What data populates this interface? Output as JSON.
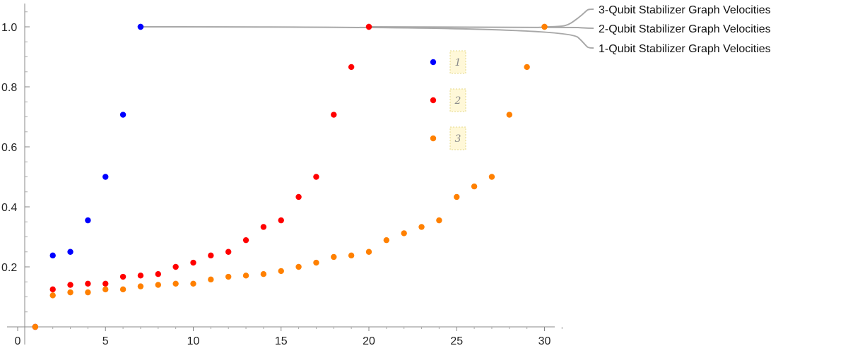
{
  "chart_data": {
    "type": "scatter",
    "title": "",
    "xlabel": "",
    "ylabel": "",
    "xlim": [
      0,
      31
    ],
    "ylim": [
      0,
      1.08
    ],
    "x_ticks": [
      0,
      5,
      10,
      15,
      20,
      25,
      30
    ],
    "y_ticks": [
      0.2,
      0.4,
      0.6,
      0.8,
      1.0
    ],
    "x_tick_labels": [
      "0",
      "5",
      "10",
      "15",
      "20",
      "25",
      "30"
    ],
    "y_tick_labels": [
      "0.2",
      "0.4",
      "0.6",
      "0.8",
      "1.0"
    ],
    "grid": false,
    "series": [
      {
        "name": "1-Qubit Stabilizer Graph Velocities",
        "key": "1",
        "color": "#0000ff",
        "points": [
          [
            1,
            0
          ],
          [
            2,
            0.238
          ],
          [
            3,
            0.25
          ],
          [
            4,
            0.355
          ],
          [
            5,
            0.5
          ],
          [
            6,
            0.707
          ],
          [
            7,
            1.0
          ]
        ]
      },
      {
        "name": "2-Qubit Stabilizer Graph Velocities",
        "key": "2",
        "color": "#ff0000",
        "points": [
          [
            1,
            0
          ],
          [
            2,
            0.125
          ],
          [
            3,
            0.14
          ],
          [
            4,
            0.144
          ],
          [
            5,
            0.144
          ],
          [
            6,
            0.167
          ],
          [
            7,
            0.171
          ],
          [
            8,
            0.176
          ],
          [
            9,
            0.2
          ],
          [
            10,
            0.214
          ],
          [
            11,
            0.238
          ],
          [
            12,
            0.25
          ],
          [
            13,
            0.289
          ],
          [
            14,
            0.333
          ],
          [
            15,
            0.355
          ],
          [
            16,
            0.433
          ],
          [
            17,
            0.5
          ],
          [
            18,
            0.707
          ],
          [
            19,
            0.866
          ],
          [
            20,
            1.0
          ]
        ]
      },
      {
        "name": "3-Qubit Stabilizer Graph Velocities",
        "key": "3",
        "color": "#ff8000",
        "points": [
          [
            1,
            0
          ],
          [
            2,
            0.105
          ],
          [
            3,
            0.115
          ],
          [
            4,
            0.115
          ],
          [
            5,
            0.125
          ],
          [
            6,
            0.125
          ],
          [
            7,
            0.135
          ],
          [
            8,
            0.14
          ],
          [
            9,
            0.144
          ],
          [
            10,
            0.144
          ],
          [
            11,
            0.158
          ],
          [
            12,
            0.167
          ],
          [
            13,
            0.171
          ],
          [
            14,
            0.176
          ],
          [
            15,
            0.186
          ],
          [
            16,
            0.2
          ],
          [
            17,
            0.214
          ],
          [
            18,
            0.233
          ],
          [
            19,
            0.238
          ],
          [
            20,
            0.25
          ],
          [
            21,
            0.289
          ],
          [
            22,
            0.312
          ],
          [
            23,
            0.333
          ],
          [
            24,
            0.355
          ],
          [
            25,
            0.433
          ],
          [
            26,
            0.468
          ],
          [
            27,
            0.5
          ],
          [
            28,
            0.707
          ],
          [
            29,
            0.866
          ],
          [
            30,
            1.0
          ]
        ]
      }
    ],
    "legend": {
      "placement": "top-right",
      "order": [
        "3-Qubit Stabilizer Graph Velocities",
        "2-Qubit Stabilizer Graph Velocities",
        "1-Qubit Stabilizer Graph Velocities"
      ]
    }
  }
}
